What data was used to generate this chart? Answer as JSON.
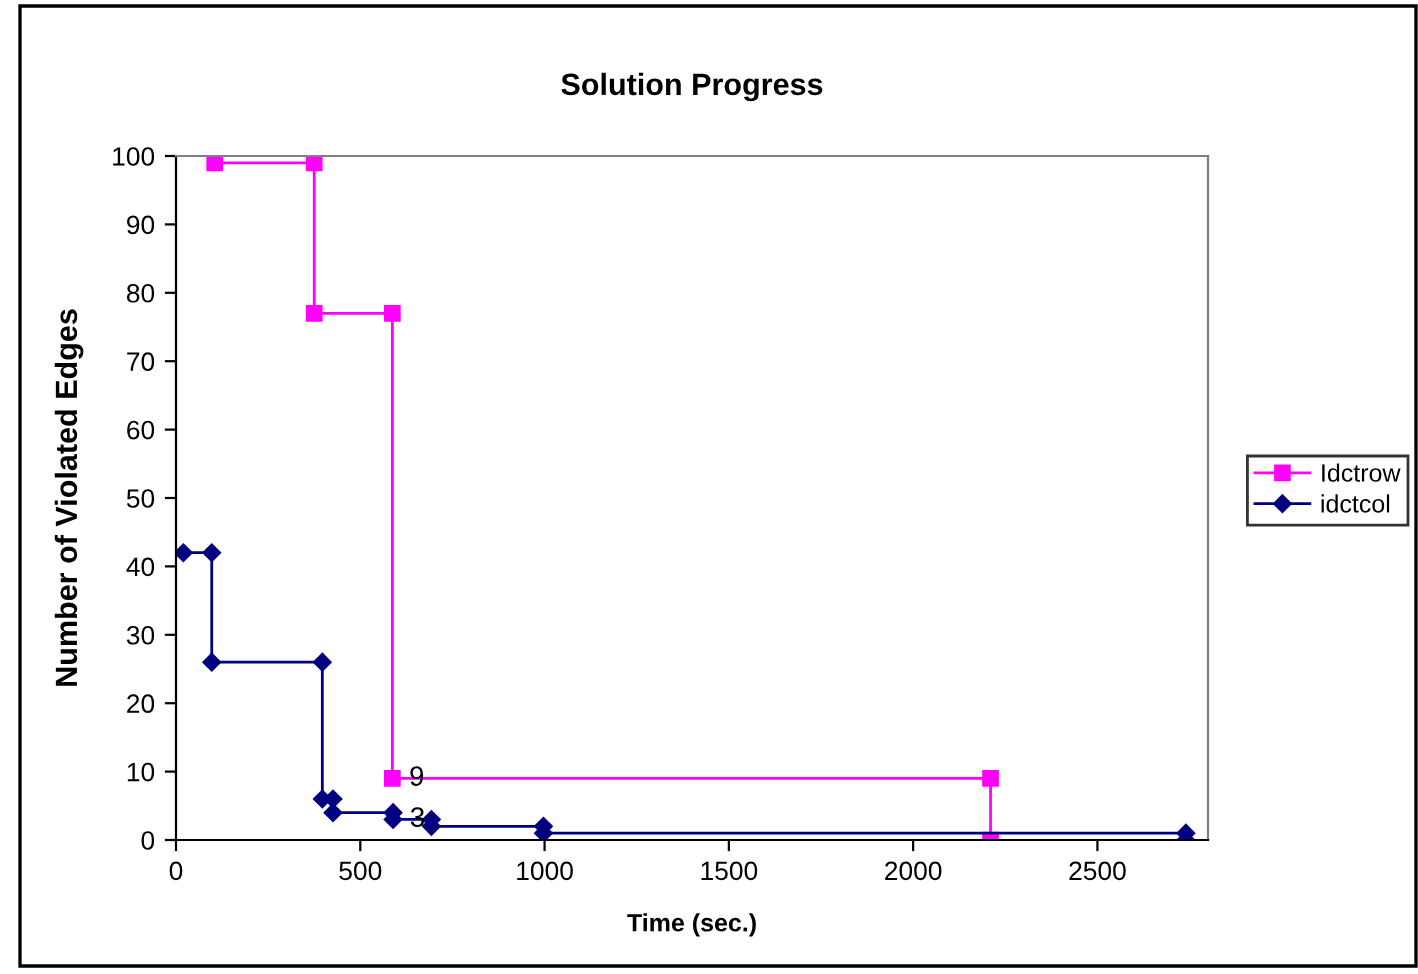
{
  "chart_data": {
    "type": "line",
    "title": "Solution Progress",
    "xlabel": "Time (sec.)",
    "ylabel": "Number of Violated Edges",
    "series": [
      {
        "name": "Idctrow",
        "color": "#ff00ff",
        "marker": "square",
        "x": [
          105,
          375,
          375,
          587,
          587,
          2210,
          2210
        ],
        "values": [
          99,
          99,
          77,
          77,
          9,
          9,
          0
        ]
      },
      {
        "name": "idctcol",
        "color": "#000080",
        "marker": "diamond",
        "x": [
          20,
          97,
          97,
          397,
          397,
          426,
          426,
          589,
          589,
          693,
          693,
          997,
          997,
          2740,
          2740
        ],
        "values": [
          42,
          42,
          26,
          26,
          6,
          6,
          4,
          4,
          3,
          3,
          2,
          2,
          1,
          1,
          0
        ]
      }
    ],
    "annotations": [
      {
        "text": "9",
        "x": 587,
        "y": 9
      },
      {
        "text": "3",
        "x": 589,
        "y": 3
      }
    ],
    "xlim": [
      0,
      2800
    ],
    "xticks": [
      0,
      500,
      1000,
      1500,
      2000,
      2500
    ],
    "ylim": [
      0,
      100
    ],
    "yticks": [
      0,
      10,
      20,
      30,
      40,
      50,
      60,
      70,
      80,
      90,
      100
    ],
    "grid": false,
    "legend": "right",
    "line_style": "solid"
  }
}
